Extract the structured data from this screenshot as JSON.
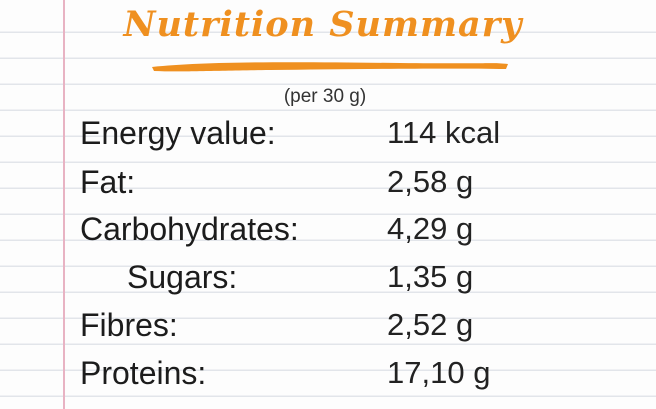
{
  "title": "Nutrition Summary",
  "subtitle": "(per 30 g)",
  "accent_color": "#ef9020",
  "rows": [
    {
      "label": "Energy value:",
      "value": "114 kcal"
    },
    {
      "label": "Fat:",
      "value": "2,58 g"
    },
    {
      "label": "Carbohydrates:",
      "value": "4,29 g"
    },
    {
      "label": "Sugars:",
      "value": "1,35 g"
    },
    {
      "label": "Fibres:",
      "value": "2,52 g"
    },
    {
      "label": "Proteins:",
      "value": "17,10 g"
    }
  ]
}
